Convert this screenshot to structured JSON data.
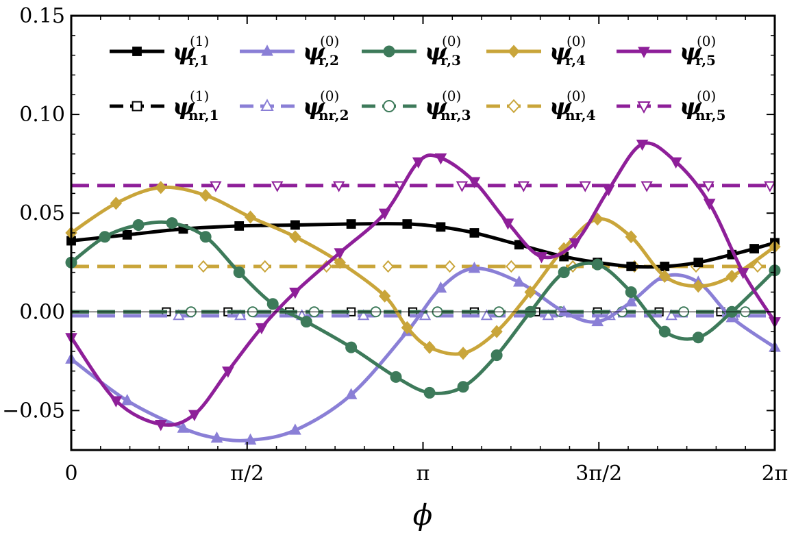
{
  "chart_data": {
    "type": "line",
    "xlabel": "ϕ",
    "ylabel": "",
    "xlim": [
      0,
      6.2832
    ],
    "ylim": [
      -0.07,
      0.15
    ],
    "xticks": [
      {
        "value": 0,
        "label": "0"
      },
      {
        "value": 1.5708,
        "label": "π/2"
      },
      {
        "value": 3.1416,
        "label": "π"
      },
      {
        "value": 4.7124,
        "label": "3π/2"
      },
      {
        "value": 6.2832,
        "label": "2π"
      }
    ],
    "yticks": [
      {
        "value": -0.05,
        "label": "−0.05"
      },
      {
        "value": 0.0,
        "label": "0.00"
      },
      {
        "value": 0.05,
        "label": "0.05"
      },
      {
        "value": 0.1,
        "label": "0.10"
      },
      {
        "value": 0.15,
        "label": "0.15"
      }
    ],
    "series": [
      {
        "name": "ψ_r,1^(1)",
        "psi": "ψ",
        "sub": "r,1",
        "sup": "(1)",
        "color": "#000000",
        "marker": "square",
        "filled": true,
        "dashed": false,
        "x": [
          0,
          0.5,
          1.0,
          1.5,
          2.0,
          2.5,
          3.0,
          3.3,
          3.6,
          4.0,
          4.4,
          4.7,
          5.0,
          5.3,
          5.6,
          5.9,
          6.1,
          6.2832
        ],
        "y": [
          0.036,
          0.039,
          0.042,
          0.0435,
          0.044,
          0.0445,
          0.0445,
          0.043,
          0.04,
          0.034,
          0.028,
          0.025,
          0.023,
          0.023,
          0.025,
          0.029,
          0.032,
          0.035
        ]
      },
      {
        "name": "ψ_r,2^(0)",
        "psi": "ψ",
        "sub": "r,2",
        "sup": "(0)",
        "color": "#8a7fd6",
        "marker": "triangle-up",
        "filled": true,
        "dashed": false,
        "x": [
          0,
          0.5,
          1.0,
          1.3,
          1.6,
          2.0,
          2.5,
          3.0,
          3.3,
          3.6,
          4.0,
          4.4,
          4.7,
          5.0,
          5.3,
          5.6,
          5.9,
          6.2832
        ],
        "y": [
          -0.024,
          -0.045,
          -0.059,
          -0.064,
          -0.065,
          -0.06,
          -0.042,
          -0.01,
          0.012,
          0.022,
          0.015,
          0.0,
          -0.005,
          0.005,
          0.018,
          0.015,
          -0.003,
          -0.018
        ]
      },
      {
        "name": "ψ_r,3^(0)",
        "psi": "ψ",
        "sub": "r,3",
        "sup": "(0)",
        "color": "#3d7a5a",
        "marker": "circle",
        "filled": true,
        "dashed": false,
        "x": [
          0,
          0.3,
          0.6,
          0.9,
          1.2,
          1.5,
          1.8,
          2.1,
          2.5,
          2.9,
          3.2,
          3.5,
          3.8,
          4.1,
          4.4,
          4.7,
          5.0,
          5.3,
          5.6,
          5.9,
          6.2832
        ],
        "y": [
          0.025,
          0.038,
          0.044,
          0.045,
          0.038,
          0.02,
          0.004,
          -0.005,
          -0.018,
          -0.033,
          -0.041,
          -0.038,
          -0.022,
          0.0,
          0.02,
          0.024,
          0.01,
          -0.01,
          -0.013,
          0.0,
          0.021
        ]
      },
      {
        "name": "ψ_r,4^(0)",
        "psi": "ψ",
        "sub": "r,4",
        "sup": "(0)",
        "color": "#c9a53a",
        "marker": "diamond",
        "filled": true,
        "dashed": false,
        "x": [
          0,
          0.4,
          0.8,
          1.2,
          1.6,
          2.0,
          2.4,
          2.8,
          3.0,
          3.2,
          3.5,
          3.8,
          4.1,
          4.4,
          4.7,
          5.0,
          5.3,
          5.6,
          5.9,
          6.2832
        ],
        "y": [
          0.04,
          0.055,
          0.063,
          0.059,
          0.048,
          0.038,
          0.025,
          0.008,
          -0.008,
          -0.018,
          -0.021,
          -0.01,
          0.01,
          0.032,
          0.047,
          0.038,
          0.018,
          0.013,
          0.018,
          0.033
        ]
      },
      {
        "name": "ψ_r,5^(0)",
        "psi": "ψ",
        "sub": "r,5",
        "sup": "(0)",
        "color": "#8e1f99",
        "marker": "triangle-down",
        "filled": true,
        "dashed": false,
        "x": [
          0,
          0.4,
          0.8,
          1.1,
          1.4,
          1.7,
          2.0,
          2.4,
          2.8,
          3.1,
          3.3,
          3.6,
          3.9,
          4.2,
          4.5,
          4.8,
          5.1,
          5.4,
          5.7,
          6.0,
          6.2832
        ],
        "y": [
          -0.013,
          -0.045,
          -0.057,
          -0.052,
          -0.03,
          -0.008,
          0.01,
          0.03,
          0.05,
          0.076,
          0.078,
          0.066,
          0.045,
          0.028,
          0.035,
          0.062,
          0.085,
          0.076,
          0.055,
          0.02,
          -0.005
        ]
      },
      {
        "name": "ψ_nr,1^(1)",
        "psi": "ψ",
        "sub": "nr,1",
        "sup": "(1)",
        "color": "#000000",
        "marker": "square",
        "filled": false,
        "dashed": true,
        "x": [
          0,
          6.2832
        ],
        "y": [
          0.0,
          0.0
        ]
      },
      {
        "name": "ψ_nr,2^(0)",
        "psi": "ψ",
        "sub": "nr,2",
        "sup": "(0)",
        "color": "#8a7fd6",
        "marker": "triangle-up",
        "filled": false,
        "dashed": true,
        "x": [
          0,
          6.2832
        ],
        "y": [
          -0.002,
          -0.002
        ]
      },
      {
        "name": "ψ_nr,3^(0)",
        "psi": "ψ",
        "sub": "nr,3",
        "sup": "(0)",
        "color": "#3d7a5a",
        "marker": "circle",
        "filled": false,
        "dashed": true,
        "x": [
          0,
          6.2832
        ],
        "y": [
          0.0,
          0.0
        ]
      },
      {
        "name": "ψ_nr,4^(0)",
        "psi": "ψ",
        "sub": "nr,4",
        "sup": "(0)",
        "color": "#c9a53a",
        "marker": "diamond",
        "filled": false,
        "dashed": true,
        "x": [
          0,
          6.2832
        ],
        "y": [
          0.023,
          0.023
        ]
      },
      {
        "name": "ψ_nr,5^(0)",
        "psi": "ψ",
        "sub": "nr,5",
        "sup": "(0)",
        "color": "#8e1f99",
        "marker": "triangle-down",
        "filled": false,
        "dashed": true,
        "x": [
          0,
          6.2832
        ],
        "y": [
          0.064,
          0.064
        ]
      }
    ],
    "legend_position": "top"
  }
}
